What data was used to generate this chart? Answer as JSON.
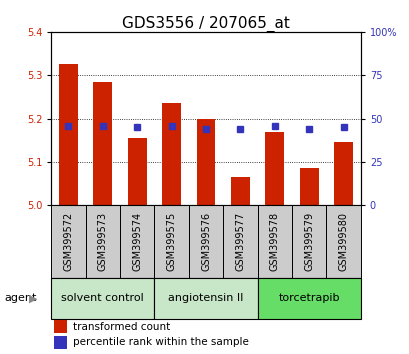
{
  "title": "GDS3556 / 207065_at",
  "samples": [
    "GSM399572",
    "GSM399573",
    "GSM399574",
    "GSM399575",
    "GSM399576",
    "GSM399577",
    "GSM399578",
    "GSM399579",
    "GSM399580"
  ],
  "bar_values": [
    5.325,
    5.285,
    5.155,
    5.235,
    5.2,
    5.065,
    5.17,
    5.085,
    5.145
  ],
  "percentile_values": [
    46,
    46,
    45,
    46,
    44,
    44,
    46,
    44,
    45
  ],
  "ylim_left": [
    5.0,
    5.4
  ],
  "ylim_right": [
    0,
    100
  ],
  "yticks_left": [
    5.0,
    5.1,
    5.2,
    5.3,
    5.4
  ],
  "yticks_right": [
    0,
    25,
    50,
    75,
    100
  ],
  "ytick_labels_right": [
    "0",
    "25",
    "50",
    "75",
    "100%"
  ],
  "bar_color": "#cc2200",
  "blue_color": "#3333bb",
  "groups": [
    {
      "label": "solvent control",
      "start": 0,
      "end": 3,
      "color": "#c8e6c8"
    },
    {
      "label": "angiotensin II",
      "start": 3,
      "end": 6,
      "color": "#c8e6c8"
    },
    {
      "label": "torcetrapib",
      "start": 6,
      "end": 9,
      "color": "#66dd66"
    }
  ],
  "agent_label": "agent",
  "legend_red_label": "transformed count",
  "legend_blue_label": "percentile rank within the sample",
  "bar_width": 0.55,
  "sample_bg_color": "#cccccc",
  "title_fontsize": 11,
  "tick_fontsize": 7,
  "label_fontsize": 7,
  "group_fontsize": 8,
  "legend_fontsize": 7.5
}
